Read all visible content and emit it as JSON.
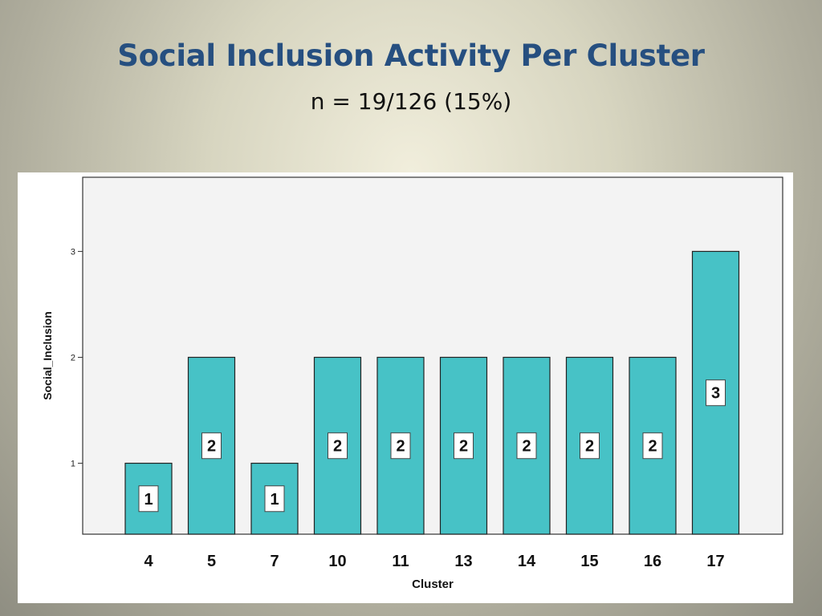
{
  "slide": {
    "title": "Social Inclusion Activity Per Cluster",
    "subtitle": "n = 19/126 (15%)"
  },
  "chart_data": {
    "type": "bar",
    "categories": [
      "4",
      "5",
      "7",
      "10",
      "11",
      "13",
      "14",
      "15",
      "16",
      "17"
    ],
    "values": [
      1,
      2,
      1,
      2,
      2,
      2,
      2,
      2,
      2,
      3
    ],
    "data_labels": [
      "1",
      "2",
      "1",
      "2",
      "2",
      "2",
      "2",
      "2",
      "2",
      "3"
    ],
    "xlabel": "Cluster",
    "ylabel": "Social_Inclusion",
    "yticks": [
      1,
      2,
      3
    ],
    "ylim": [
      0.33,
      3.7
    ],
    "grid": false,
    "legend": "none",
    "colors": {
      "bar": "#47c2c6",
      "bar_border": "#222222",
      "plot_bg": "#f3f3f3"
    }
  }
}
